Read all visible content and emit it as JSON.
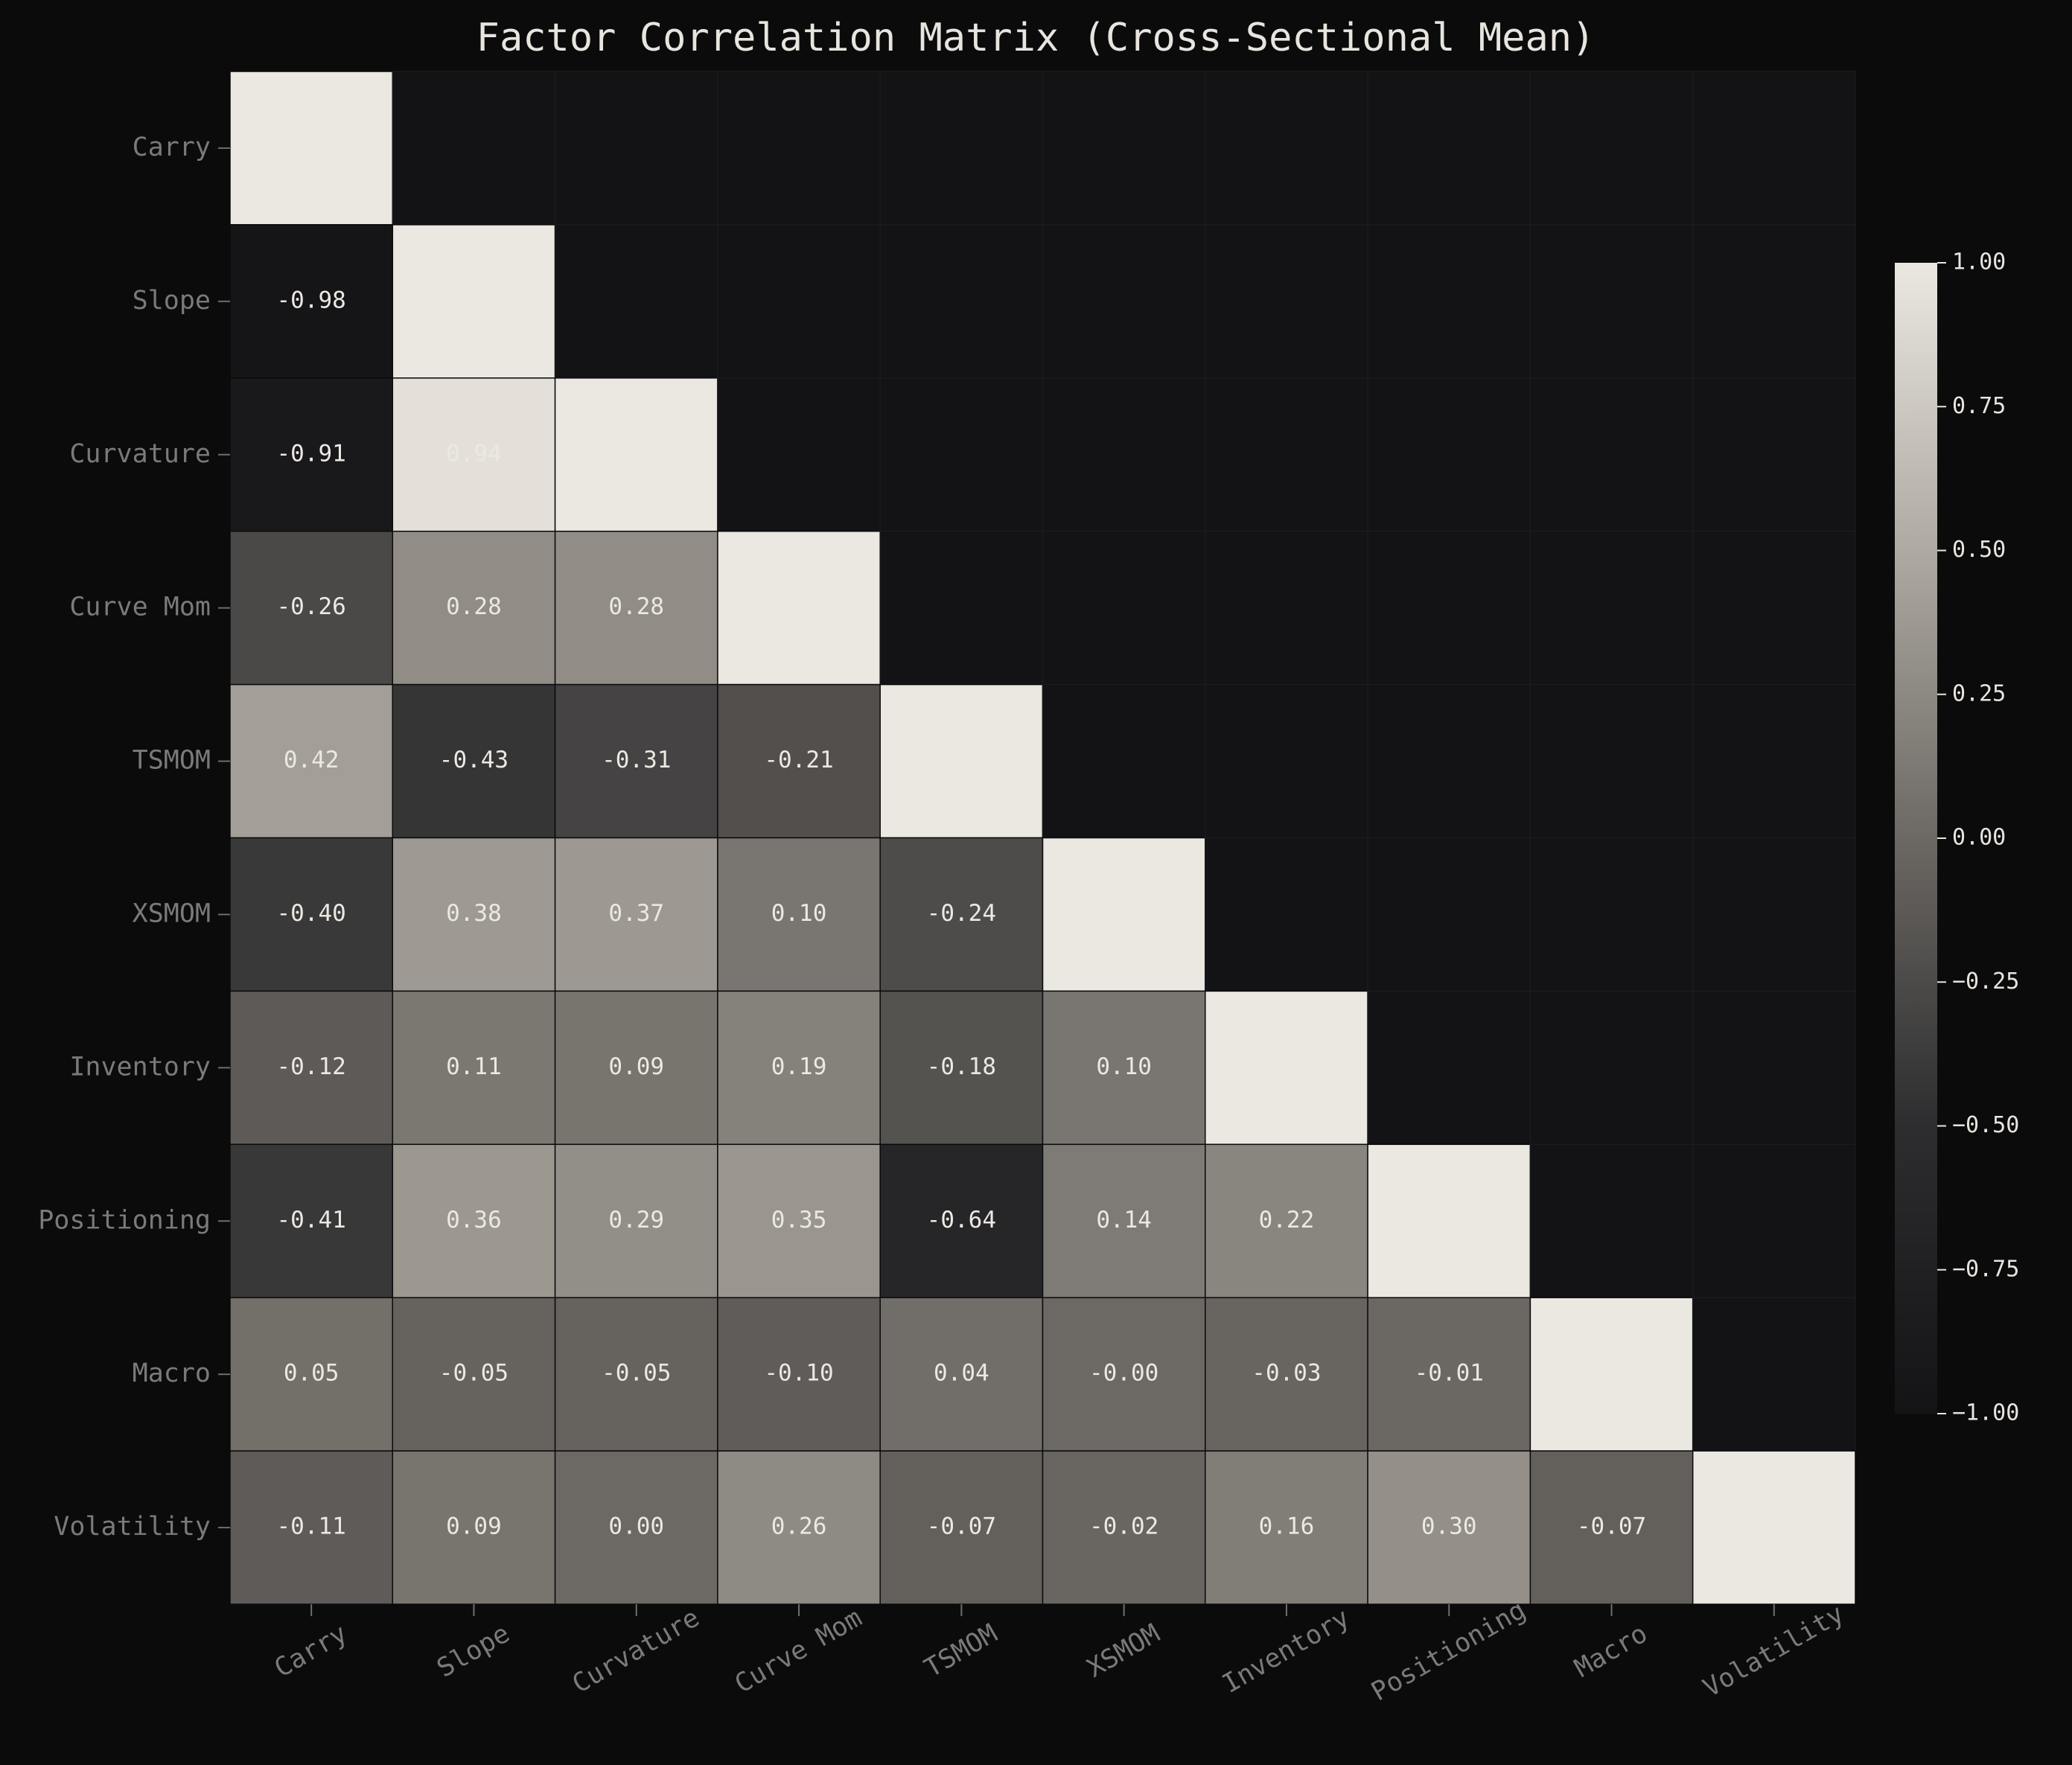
{
  "chart_data": {
    "type": "heatmap",
    "title": "Factor Correlation Matrix (Cross-Sectional Mean)",
    "categories": [
      "Carry",
      "Slope",
      "Curvature",
      "Curve Mom",
      "TSMOM",
      "XSMOM",
      "Inventory",
      "Positioning",
      "Macro",
      "Volatility"
    ],
    "values": [
      [
        1,
        null,
        null,
        null,
        null,
        null,
        null,
        null,
        null,
        null
      ],
      [
        -0.98,
        1,
        null,
        null,
        null,
        null,
        null,
        null,
        null,
        null
      ],
      [
        -0.91,
        0.94,
        1,
        null,
        null,
        null,
        null,
        null,
        null,
        null
      ],
      [
        -0.26,
        0.28,
        0.28,
        1,
        null,
        null,
        null,
        null,
        null,
        null
      ],
      [
        0.42,
        -0.43,
        -0.31,
        -0.21,
        1,
        null,
        null,
        null,
        null,
        null
      ],
      [
        -0.4,
        0.38,
        0.37,
        0.1,
        -0.24,
        1,
        null,
        null,
        null,
        null
      ],
      [
        -0.12,
        0.11,
        0.09,
        0.19,
        -0.18,
        0.1,
        1,
        null,
        null,
        null
      ],
      [
        -0.41,
        0.36,
        0.29,
        0.35,
        -0.64,
        0.14,
        0.22,
        1,
        null,
        null
      ],
      [
        0.05,
        -0.05,
        -0.05,
        -0.1,
        0.04,
        0,
        -0.03,
        -0.01,
        1,
        null
      ],
      [
        -0.11,
        0.09,
        0,
        0.26,
        -0.07,
        -0.02,
        0.16,
        0.3,
        -0.07,
        1
      ]
    ],
    "value_labels": [
      [
        null,
        null,
        null,
        null,
        null,
        null,
        null,
        null,
        null,
        null
      ],
      [
        "-0.98",
        null,
        null,
        null,
        null,
        null,
        null,
        null,
        null,
        null
      ],
      [
        "-0.91",
        "0.94",
        null,
        null,
        null,
        null,
        null,
        null,
        null,
        null
      ],
      [
        "-0.26",
        "0.28",
        "0.28",
        null,
        null,
        null,
        null,
        null,
        null,
        null
      ],
      [
        "0.42",
        "-0.43",
        "-0.31",
        "-0.21",
        null,
        null,
        null,
        null,
        null,
        null
      ],
      [
        "-0.40",
        "0.38",
        "0.37",
        "0.10",
        "-0.24",
        null,
        null,
        null,
        null,
        null
      ],
      [
        "-0.12",
        "0.11",
        "0.09",
        "0.19",
        "-0.18",
        "0.10",
        null,
        null,
        null,
        null
      ],
      [
        "-0.41",
        "0.36",
        "0.29",
        "0.35",
        "-0.64",
        "0.14",
        "0.22",
        null,
        null,
        null
      ],
      [
        "0.05",
        "-0.05",
        "-0.05",
        "-0.10",
        "0.04",
        "-0.00",
        "-0.03",
        "-0.01",
        null,
        null
      ],
      [
        "-0.11",
        "0.09",
        "0.00",
        "0.26",
        "-0.07",
        "-0.02",
        "0.16",
        "0.30",
        "-0.07",
        null
      ]
    ],
    "colorscale": [
      "#141416",
      "#2d2d2f",
      "#6c6863",
      "#aeaaa2",
      "#ebe7e1"
    ],
    "clim": [
      -1,
      1
    ],
    "cticks": [
      {
        "value": 1,
        "label": "1.00"
      },
      {
        "value": 0.75,
        "label": "0.75"
      },
      {
        "value": 0.5,
        "label": "0.50"
      },
      {
        "value": 0.25,
        "label": "0.25"
      },
      {
        "value": 0,
        "label": "0.00"
      },
      {
        "value": -0.25,
        "label": "−0.25"
      },
      {
        "value": -0.5,
        "label": "−0.50"
      },
      {
        "value": -0.75,
        "label": "−0.75"
      },
      {
        "value": -1,
        "label": "−1.00"
      }
    ]
  }
}
